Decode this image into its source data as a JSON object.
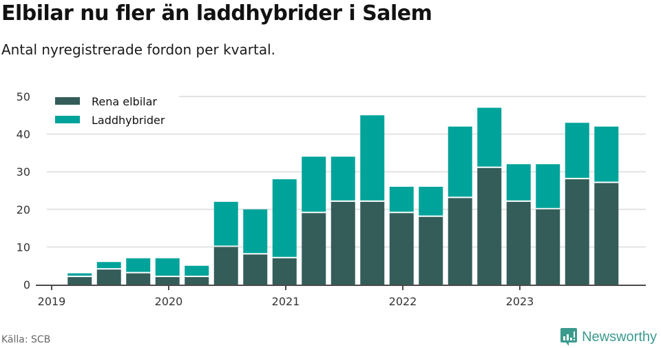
{
  "header": {
    "title": "Elbilar nu fler än laddhybrider i Salem",
    "subtitle": "Antal nyregistrerade fordon per kvartal."
  },
  "footer": {
    "source": "Källa: SCB",
    "brand": "Newsworthy"
  },
  "colors": {
    "elbilar": "#345d5a",
    "laddhybrider": "#00a39a",
    "grid": "#e3e3e3",
    "axis": "#4a4a4a",
    "brand": "#3a9a8d"
  },
  "chart_data": {
    "type": "bar",
    "stacked": true,
    "title": "Elbilar nu fler än laddhybrider i Salem",
    "subtitle": "Antal nyregistrerade fordon per kvartal.",
    "xlabel": "",
    "ylabel": "",
    "ylim": [
      0,
      50
    ],
    "yticks": [
      0,
      10,
      20,
      30,
      40,
      50
    ],
    "xticks": [
      "2019",
      "2020",
      "2021",
      "2022",
      "2023"
    ],
    "grid": true,
    "legend_position": "top-left",
    "categories": [
      "2019 Q2",
      "2019 Q3",
      "2019 Q4",
      "2020 Q1",
      "2020 Q2",
      "2020 Q3",
      "2020 Q4",
      "2021 Q1",
      "2021 Q2",
      "2021 Q3",
      "2021 Q4",
      "2022 Q1",
      "2022 Q2",
      "2022 Q3",
      "2022 Q4",
      "2023 Q1",
      "2023 Q2",
      "2023 Q3",
      "2023 Q4"
    ],
    "series": [
      {
        "name": "Rena elbilar",
        "values": [
          2,
          4,
          3,
          2,
          2,
          10,
          8,
          7,
          19,
          22,
          22,
          19,
          18,
          23,
          31,
          22,
          20,
          28,
          27
        ]
      },
      {
        "name": "Laddhybrider",
        "values": [
          1,
          2,
          4,
          5,
          3,
          12,
          12,
          21,
          15,
          12,
          23,
          7,
          8,
          19,
          16,
          10,
          12,
          15,
          15
        ]
      }
    ]
  }
}
